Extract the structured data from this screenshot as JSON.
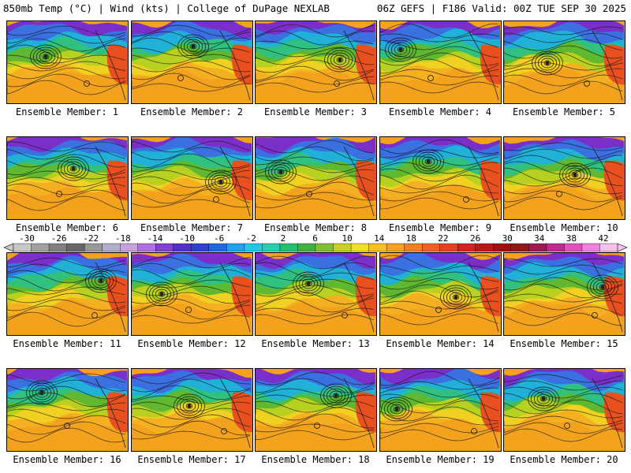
{
  "header": {
    "left": "850mb Temp (°C) | Wind (kts) | College of DuPage NEXLAB",
    "right": "06Z GEFS | F186 Valid: 00Z TUE SEP 30 2025"
  },
  "members": [
    "Ensemble Member: 1",
    "Ensemble Member: 2",
    "Ensemble Member: 3",
    "Ensemble Member: 4",
    "Ensemble Member: 5",
    "Ensemble Member: 6",
    "Ensemble Member: 7",
    "Ensemble Member: 8",
    "Ensemble Member: 9",
    "Ensemble Member: 10",
    "Ensemble Member: 11",
    "Ensemble Member: 12",
    "Ensemble Member: 13",
    "Ensemble Member: 14",
    "Ensemble Member: 15",
    "Ensemble Member: 16",
    "Ensemble Member: 17",
    "Ensemble Member: 18",
    "Ensemble Member: 19",
    "Ensemble Member: 20"
  ],
  "colorbar": {
    "labels": [
      "-30",
      "-26",
      "-22",
      "-18",
      "-14",
      "-10",
      "-6",
      "-2",
      "2",
      "6",
      "10",
      "14",
      "18",
      "22",
      "26",
      "30",
      "34",
      "38",
      "42"
    ],
    "colors": [
      "#c8c8c8",
      "#a0a0a0",
      "#808080",
      "#686868",
      "#989898",
      "#b0b0c8",
      "#c8a0e0",
      "#b070e0",
      "#8040d0",
      "#5030c8",
      "#3040d0",
      "#2068e0",
      "#20a0f0",
      "#20c8e8",
      "#20d0b0",
      "#20c070",
      "#40b040",
      "#80c030",
      "#c8d020",
      "#f0e020",
      "#f8c020",
      "#f8a020",
      "#f08020",
      "#f06020",
      "#e84020",
      "#d82020",
      "#c01818",
      "#a01010",
      "#901818",
      "#a01850",
      "#c02890",
      "#e050c0",
      "#f080e0",
      "#f8c0f0"
    ]
  },
  "map": {
    "field_colors": [
      "#7a30c8",
      "#3a70e0",
      "#20b0d8",
      "#30c080",
      "#60b830",
      "#b8d020",
      "#f0d020",
      "#f4b020",
      "#f3a21e",
      "#e85020"
    ]
  }
}
